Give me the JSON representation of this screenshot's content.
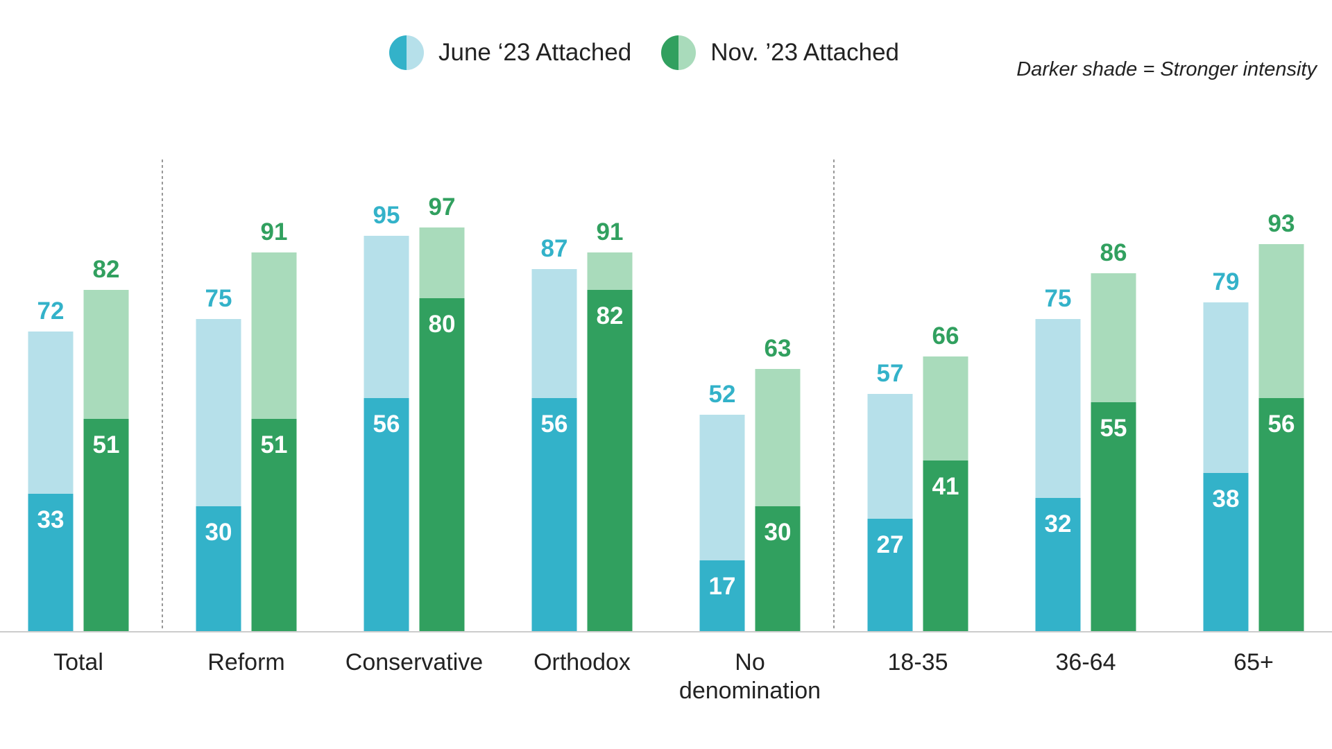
{
  "legend": {
    "june_label": "June ‘23 Attached",
    "nov_label": "Nov. ’23 Attached",
    "note": "Darker shade = Stronger intensity"
  },
  "colors": {
    "june_dark": "#33b2c9",
    "june_light": "#b6e0ea",
    "nov_dark": "#31a05f",
    "nov_light": "#a9dbbb",
    "june_text": "#33b2c9",
    "nov_text": "#31a05f",
    "axis": "#cccccc",
    "divider": "#555555"
  },
  "chart_data": {
    "type": "bar",
    "title": "",
    "xlabel": "",
    "ylabel": "",
    "ylim": [
      0,
      100
    ],
    "categories": [
      [
        "Total"
      ],
      [
        "Reform"
      ],
      [
        "Conservative"
      ],
      [
        "Orthodox"
      ],
      [
        "No",
        "denomination"
      ],
      [
        "18-35"
      ],
      [
        "36-64"
      ],
      [
        "65+"
      ]
    ],
    "series": [
      {
        "name": "June ‘23 Attached",
        "total": [
          72,
          75,
          95,
          87,
          52,
          57,
          75,
          79
        ],
        "strong": [
          33,
          30,
          56,
          56,
          17,
          27,
          32,
          38
        ]
      },
      {
        "name": "Nov. ’23 Attached",
        "total": [
          82,
          91,
          97,
          91,
          63,
          66,
          86,
          93
        ],
        "strong": [
          51,
          51,
          80,
          82,
          30,
          41,
          55,
          56
        ]
      }
    ],
    "dividers_after_category_index": [
      0,
      4
    ]
  }
}
